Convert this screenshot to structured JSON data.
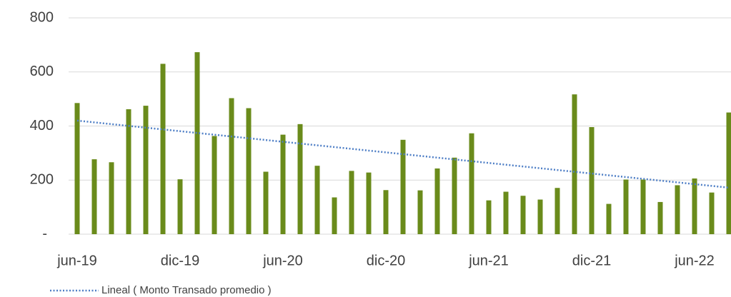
{
  "chart_data": {
    "type": "bar",
    "categories": [
      "jun-19",
      null,
      null,
      null,
      null,
      null,
      "dic-19",
      null,
      null,
      null,
      null,
      null,
      "jun-20",
      null,
      null,
      null,
      null,
      null,
      "dic-20",
      null,
      null,
      null,
      null,
      null,
      "jun-21",
      null,
      null,
      null,
      null,
      null,
      "dic-21",
      null,
      null,
      null,
      null,
      null,
      "jun-22",
      null,
      null
    ],
    "values": [
      485,
      277,
      266,
      462,
      475,
      630,
      203,
      673,
      363,
      503,
      466,
      231,
      368,
      407,
      253,
      136,
      234,
      228,
      163,
      349,
      162,
      243,
      283,
      373,
      125,
      157,
      142,
      128,
      171,
      517,
      396,
      112,
      202,
      202,
      119,
      181,
      206,
      154,
      450
    ],
    "color": "#6a8b1b",
    "trend": {
      "name": "Lineal ( Monto Transado promedio )",
      "color": "#4f7fc6",
      "start": 420,
      "end": 172
    },
    "ylim": [
      0,
      800
    ],
    "yticks": [
      {
        "value": 0,
        "label": "-"
      },
      200,
      400,
      600,
      800
    ],
    "grid": true
  }
}
